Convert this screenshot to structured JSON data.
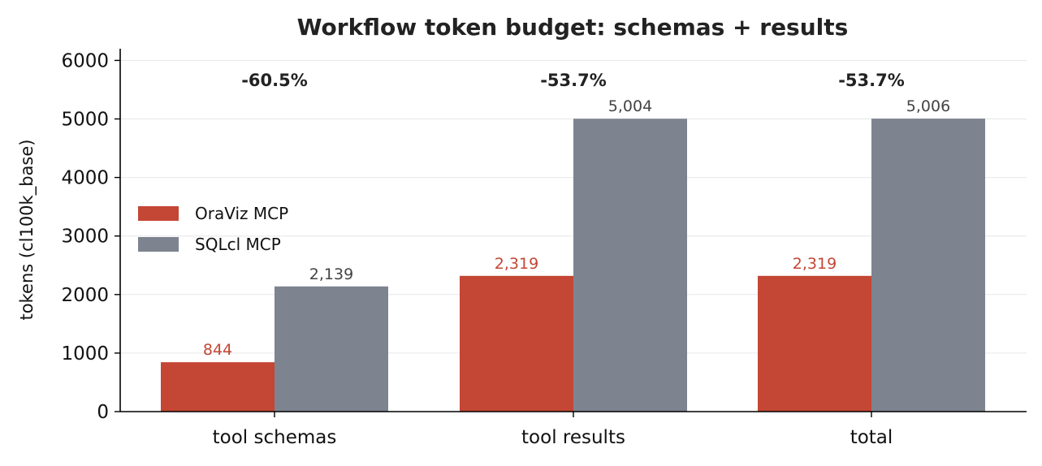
{
  "chart_data": {
    "type": "bar",
    "title": "Workflow token budget: schemas + results",
    "xlabel": "",
    "ylabel": "tokens (cl100k_base)",
    "ylim": [
      0,
      6200
    ],
    "yticks": [
      0,
      1000,
      2000,
      3000,
      4000,
      5000,
      6000
    ],
    "grid": "horizontal",
    "legend_position": "center-left",
    "categories": [
      "tool schemas",
      "tool results",
      "total"
    ],
    "series": [
      {
        "name": "OraViz MCP",
        "color": "#c44634",
        "label_color": "#c44634",
        "values": [
          844,
          2319,
          2319
        ],
        "value_labels": [
          "844",
          "2,319",
          "2,319"
        ]
      },
      {
        "name": "SQLcl MCP",
        "color": "#7d8490",
        "label_color": "#444444",
        "values": [
          2139,
          5004,
          5006
        ],
        "value_labels": [
          "2,139",
          "5,004",
          "5,006"
        ]
      }
    ],
    "annotations": [
      "-60.5%",
      "-53.7%",
      "-53.7%"
    ]
  }
}
